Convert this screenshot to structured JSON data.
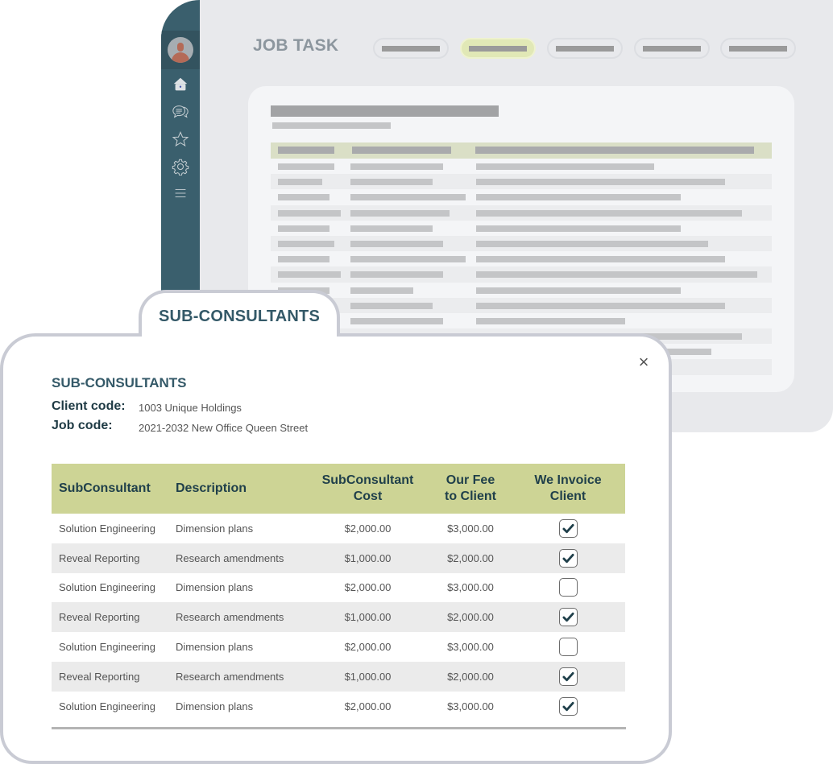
{
  "background_app": {
    "title": "JOB TASK",
    "nav_pills": [
      {
        "state": "default"
      },
      {
        "state": "active"
      },
      {
        "state": "default"
      },
      {
        "state": "default"
      },
      {
        "state": "default"
      }
    ],
    "sidebar": {
      "icons": [
        "avatar",
        "home-icon",
        "chat-icon",
        "star-icon",
        "gear-icon",
        "menu-icon"
      ]
    }
  },
  "modal": {
    "tab_label": "SUB-CONSULTANTS",
    "close_label": "×",
    "heading": "SUB-CONSULTANTS",
    "client_code_label": "Client code:",
    "client_code_value": "1003 Unique Holdings",
    "job_code_label": "Job code:",
    "job_code_value": "2021-2032 New Office Queen Street",
    "table": {
      "columns": [
        "SubConsultant",
        "Description",
        "SubConsultant Cost",
        "Our Fee to Client",
        "We Invoice Client"
      ],
      "column_lines": {
        "cost": [
          "SubConsultant",
          "Cost"
        ],
        "fee": [
          "Our Fee",
          "to Client"
        ],
        "invoice": [
          "We Invoice",
          "Client"
        ]
      },
      "rows": [
        {
          "subconsultant": "Solution Engineering",
          "description": "Dimension plans",
          "cost": "$2,000.00",
          "fee": "$3,000.00",
          "invoice": true
        },
        {
          "subconsultant": "Reveal Reporting",
          "description": "Research amendments",
          "cost": "$1,000.00",
          "fee": "$2,000.00",
          "invoice": true
        },
        {
          "subconsultant": "Solution Engineering",
          "description": "Dimension plans",
          "cost": "$2,000.00",
          "fee": "$3,000.00",
          "invoice": false
        },
        {
          "subconsultant": "Reveal Reporting",
          "description": "Research amendments",
          "cost": "$1,000.00",
          "fee": "$2,000.00",
          "invoice": true
        },
        {
          "subconsultant": "Solution Engineering",
          "description": "Dimension plans",
          "cost": "$2,000.00",
          "fee": "$3,000.00",
          "invoice": false
        },
        {
          "subconsultant": "Reveal Reporting",
          "description": "Research amendments",
          "cost": "$1,000.00",
          "fee": "$2,000.00",
          "invoice": true
        },
        {
          "subconsultant": "Solution Engineering",
          "description": "Dimension plans",
          "cost": "$2,000.00",
          "fee": "$3,000.00",
          "invoice": true
        }
      ]
    }
  },
  "colors": {
    "sidebar": "#3a5f6d",
    "accent_heading": "#345968",
    "table_header": "#cdd495",
    "active_pill": "#e1e8b6",
    "checkmark": "#1f3f4a"
  }
}
